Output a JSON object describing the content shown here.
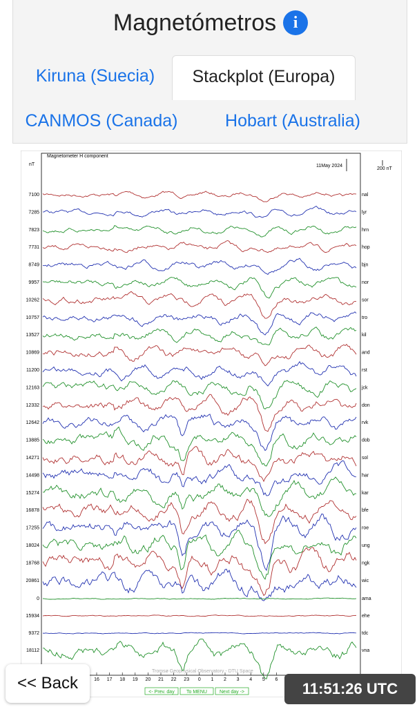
{
  "header": {
    "title": "Magnetómetros"
  },
  "tabs": [
    "Kiruna (Suecia)",
    "Stackplot (Europa)",
    "CANMOS (Canada)",
    "Hobart (Australia)"
  ],
  "plot": {
    "title": "Magnetometer H component",
    "unit": "nT",
    "date": "11May 2024",
    "scale": "200 nT",
    "baselines": [
      7100,
      7285,
      7823,
      7731,
      8749,
      9957,
      10262,
      10757,
      13527,
      10869,
      11200,
      12163,
      12332,
      12642,
      13885,
      14271,
      14498,
      15274,
      16878,
      17255,
      18024,
      18768,
      20861,
      0,
      15934,
      9372,
      18112
    ],
    "stations": [
      "nal",
      "lyr",
      "hrn",
      "hop",
      "bjn",
      "nor",
      "sor",
      "tro",
      "kil",
      "and",
      "rst",
      "jck",
      "don",
      "rvk",
      "dob",
      "sol",
      "har",
      "kar",
      "bfe",
      "roe",
      "ung",
      "ngk",
      "wic",
      "ama",
      "ehe",
      "tdc",
      "vna"
    ],
    "hours": [
      16,
      17,
      18,
      19,
      20,
      21,
      22,
      23,
      0,
      1,
      2,
      3,
      4,
      5,
      6
    ],
    "credit": "Tromsø Geophysical Observatory - DTU Space",
    "buttons": [
      "<- Prev. day",
      "To MENU",
      "Next day ->"
    ]
  },
  "footer": {
    "back": "<< Back",
    "time": "11:51:26 UTC"
  }
}
